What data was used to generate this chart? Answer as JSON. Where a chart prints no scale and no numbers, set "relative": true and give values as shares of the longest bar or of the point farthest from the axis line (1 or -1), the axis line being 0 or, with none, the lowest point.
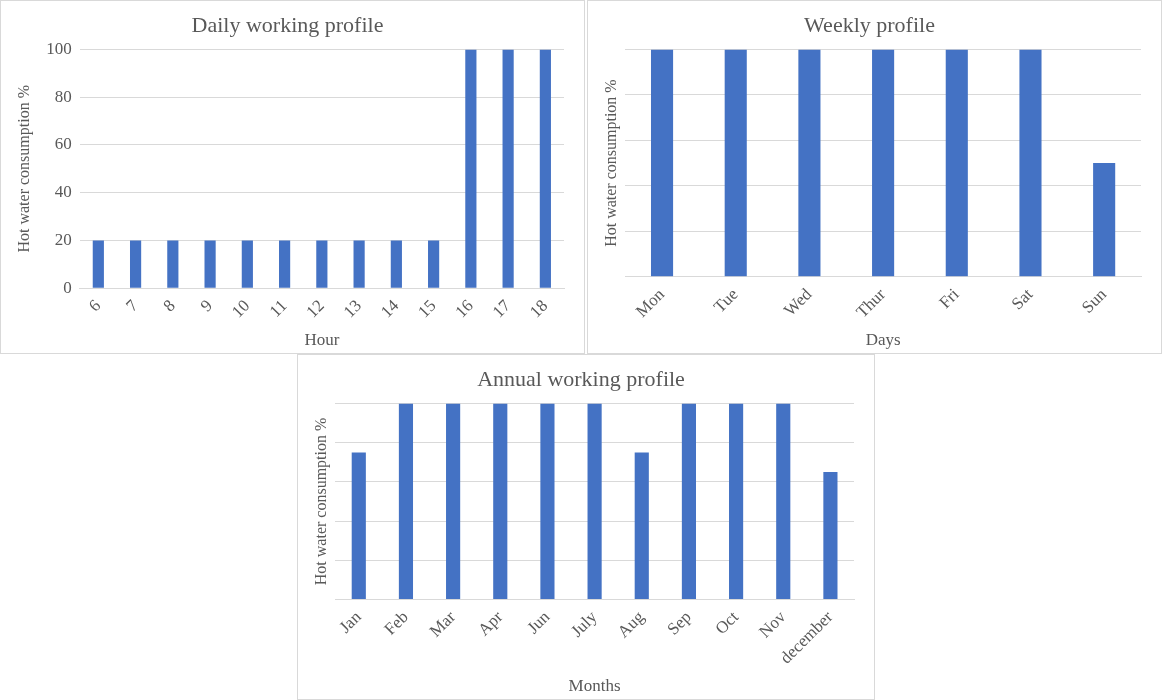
{
  "chart_data": [
    {
      "type": "bar",
      "title": "Daily working profile",
      "xlabel": "Hour",
      "ylabel": "Hot water consumption %",
      "categories": [
        "6",
        "7",
        "8",
        "9",
        "10",
        "11",
        "12",
        "13",
        "14",
        "15",
        "16",
        "17",
        "18"
      ],
      "values": [
        20,
        20,
        20,
        20,
        20,
        20,
        20,
        20,
        20,
        20,
        100,
        100,
        100
      ],
      "color": "#4472c4",
      "ylim": [
        0,
        100
      ],
      "yticks": [
        0,
        20,
        40,
        60,
        80,
        100
      ],
      "grid": "y"
    },
    {
      "type": "bar",
      "title": "Weekly profile",
      "xlabel": "Days",
      "ylabel": "Hot water consumption %",
      "categories": [
        "Mon",
        "Tue",
        "Wed",
        "Thur",
        "Fri",
        "Sat",
        "Sun"
      ],
      "values": [
        1,
        1,
        1,
        1,
        1,
        1,
        0.5
      ],
      "color": "#4472c4",
      "relative": true,
      "grid": "y"
    },
    {
      "type": "bar",
      "title": "Annual working profile",
      "xlabel": "Months",
      "ylabel": "Hot water consumption %",
      "categories": [
        "Jan",
        "Feb",
        "Mar",
        "Apr",
        "Jun",
        "July",
        "Aug",
        "Sep",
        "Oct",
        "Nov",
        "december"
      ],
      "values": [
        0.75,
        1,
        1,
        1,
        1,
        1,
        0.75,
        1,
        1,
        1,
        0.65
      ],
      "color": "#4472c4",
      "relative": true,
      "grid": "y"
    }
  ]
}
